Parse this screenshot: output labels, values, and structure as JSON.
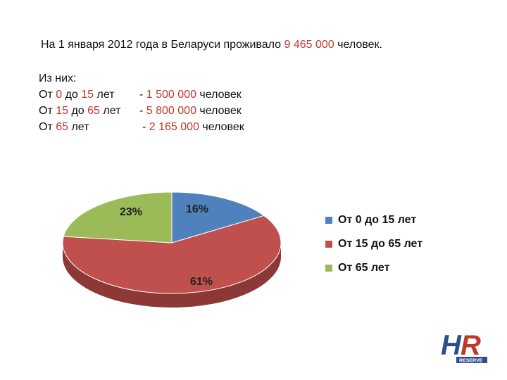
{
  "headline": {
    "prefix": "На 1 января 2012 года в Беларуси проживало ",
    "population": "9 465 000",
    "suffix": " человек."
  },
  "stats": {
    "heading": "Из них:",
    "rows": [
      {
        "prefix": "От ",
        "a": "0",
        "mid": " до ",
        "b": "15",
        "suffix": " лет",
        "value_prefix": "- ",
        "value": "1 500 000",
        "value_suffix": " человек"
      },
      {
        "prefix": "От ",
        "a": "15",
        "mid": " до ",
        "b": "65",
        "suffix": " лет",
        "value_prefix": "- ",
        "value": "5 800 000",
        "value_suffix": " человек"
      },
      {
        "prefix": "От ",
        "a": "65",
        "mid": "",
        "b": "",
        "suffix": " лет",
        "value_prefix": "- ",
        "value": "2 165 000",
        "value_suffix": " человек"
      }
    ]
  },
  "chart_data": {
    "type": "pie",
    "style": "3d",
    "legend_position": "right",
    "categories": [
      "От 0 до 15 лет",
      "От 15 до 65 лет",
      "От 65 лет"
    ],
    "values": [
      16,
      61,
      23
    ],
    "labels": [
      "16%",
      "61%",
      "23%"
    ],
    "colors": [
      "#4f81bd",
      "#c0504d",
      "#9bbb59"
    ],
    "side_colors": [
      "#385d8a",
      "#8c3836",
      "#71893f"
    ]
  },
  "logo": {
    "letters": "HR",
    "word": "RESERVE",
    "colors": [
      "#2b4d8c",
      "#c0392b"
    ]
  }
}
